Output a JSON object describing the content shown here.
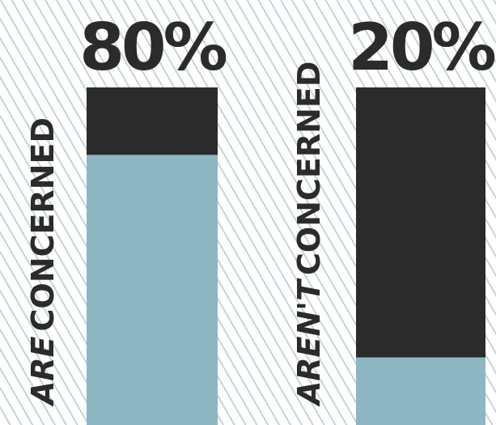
{
  "chart_data": {
    "type": "bar",
    "stacked": true,
    "categories": [
      "ARE CONCERNED",
      "AREN'T CONCERNED"
    ],
    "category_labels": [
      {
        "emphasis": "ARE",
        "rest": "CONCERNED"
      },
      {
        "emphasis": "AREN'T",
        "rest": "CONCERNED"
      }
    ],
    "values": [
      80,
      20
    ],
    "value_labels": [
      "80%",
      "20%"
    ],
    "ylim": [
      0,
      100
    ],
    "grid": false,
    "legend": "none",
    "colors": {
      "value": "#8cb7c3",
      "remainder": "#2b2b2b",
      "text": "#2b2b2b",
      "hatch": "#c6d4da"
    }
  }
}
